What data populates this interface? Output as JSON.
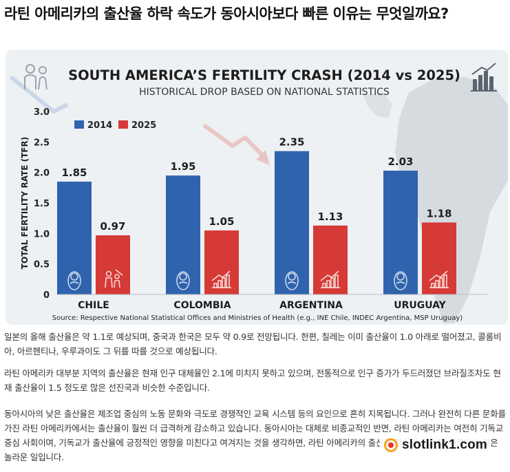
{
  "article": {
    "title": "라틴 아메리카의 출산율 하락 속도가 동아시아보다 빠른 이유는 무엇일까요?",
    "paragraphs": [
      "일본의 올해 출산율은 약 1.1로 예상되며, 중국과 한국은 모두 약 0.9로 전망됩니다. 한편, 칠레는 이미 출산율이 1.0 아래로 떨어졌고, 콜롬비아, 아르헨티나, 우루과이도 그 뒤를 따를 것으로 예상됩니다.",
      "라틴 아메리카 대부분 지역의 출산율은 현재 인구 대체율인 2.1에 미치지 못하고 있으며, 전통적으로 인구 증가가 두드러졌던 브라질조차도 현재 출산율이 1.5 정도로 많은 선진국과 비슷한 수준입니다.",
      "동아시아의 낮은 출산율은 제조업 중심의 노동 문화와 극도로 경쟁적인 교육 시스템 등의 요인으로 흔히 지목됩니다. 그러나 완전히 다른 문화를 가진 라틴 아메리카에서는 출산율이 훨씬 더 급격하게 감소하고 있습니다. 동아시아는 대체로 비종교적인 반면, 라틴 아메리카는 여전히 기독교 중심 사회이며, 기독교가 출산율에 긍정적인 영향을 미친다고 여겨지는 것을 생각하면, 라틴 아메리카의 출산율 감소 속도가 더 빠르다는 것은 놀라운 일입니다."
    ]
  },
  "watermark": {
    "text": "slotlink1.com"
  },
  "chart_data": {
    "type": "bar",
    "title": "SOUTH AMERICA’S FERTILITY CRASH (2014 vs 2025)",
    "subtitle": "HISTORICAL DROP BASED ON NATIONAL STATISTICS",
    "ylabel": "TOTAL FERTILITY RATE (TFR)",
    "xlabel": "",
    "categories": [
      "CHILE",
      "COLOMBIA",
      "ARGENTINA",
      "URUGUAY"
    ],
    "series": [
      {
        "name": "2014",
        "color": "#2f63ad",
        "values": [
          1.85,
          1.95,
          2.35,
          2.03
        ]
      },
      {
        "name": "2025",
        "color": "#d63a36",
        "values": [
          0.97,
          1.05,
          1.13,
          1.18
        ]
      }
    ],
    "value_labels": {
      "2014": [
        "1.85",
        "1.95",
        "2.35",
        "2.03"
      ],
      "2025": [
        "0.97",
        "1.05",
        "1.13",
        "1.18"
      ]
    },
    "ylim": [
      0,
      3.0
    ],
    "yticks": [
      "0",
      "0.5",
      "1.0",
      "1.5",
      "2.0",
      "2.5",
      "3.0"
    ],
    "legend_position": "top-left",
    "grid": false,
    "source": "Source: Respective National Statistical Offices and Ministries of Health (e.g., INE Chile, INDEC Argentina, MSP Uruguay)",
    "bar_icons": {
      "2014": [
        "baby-icon",
        "baby-icon",
        "baby-icon",
        "baby-icon"
      ],
      "2025": [
        "family-icon",
        "growth-chart-icon",
        "growth-chart-icon",
        "growth-chart-icon"
      ]
    }
  }
}
